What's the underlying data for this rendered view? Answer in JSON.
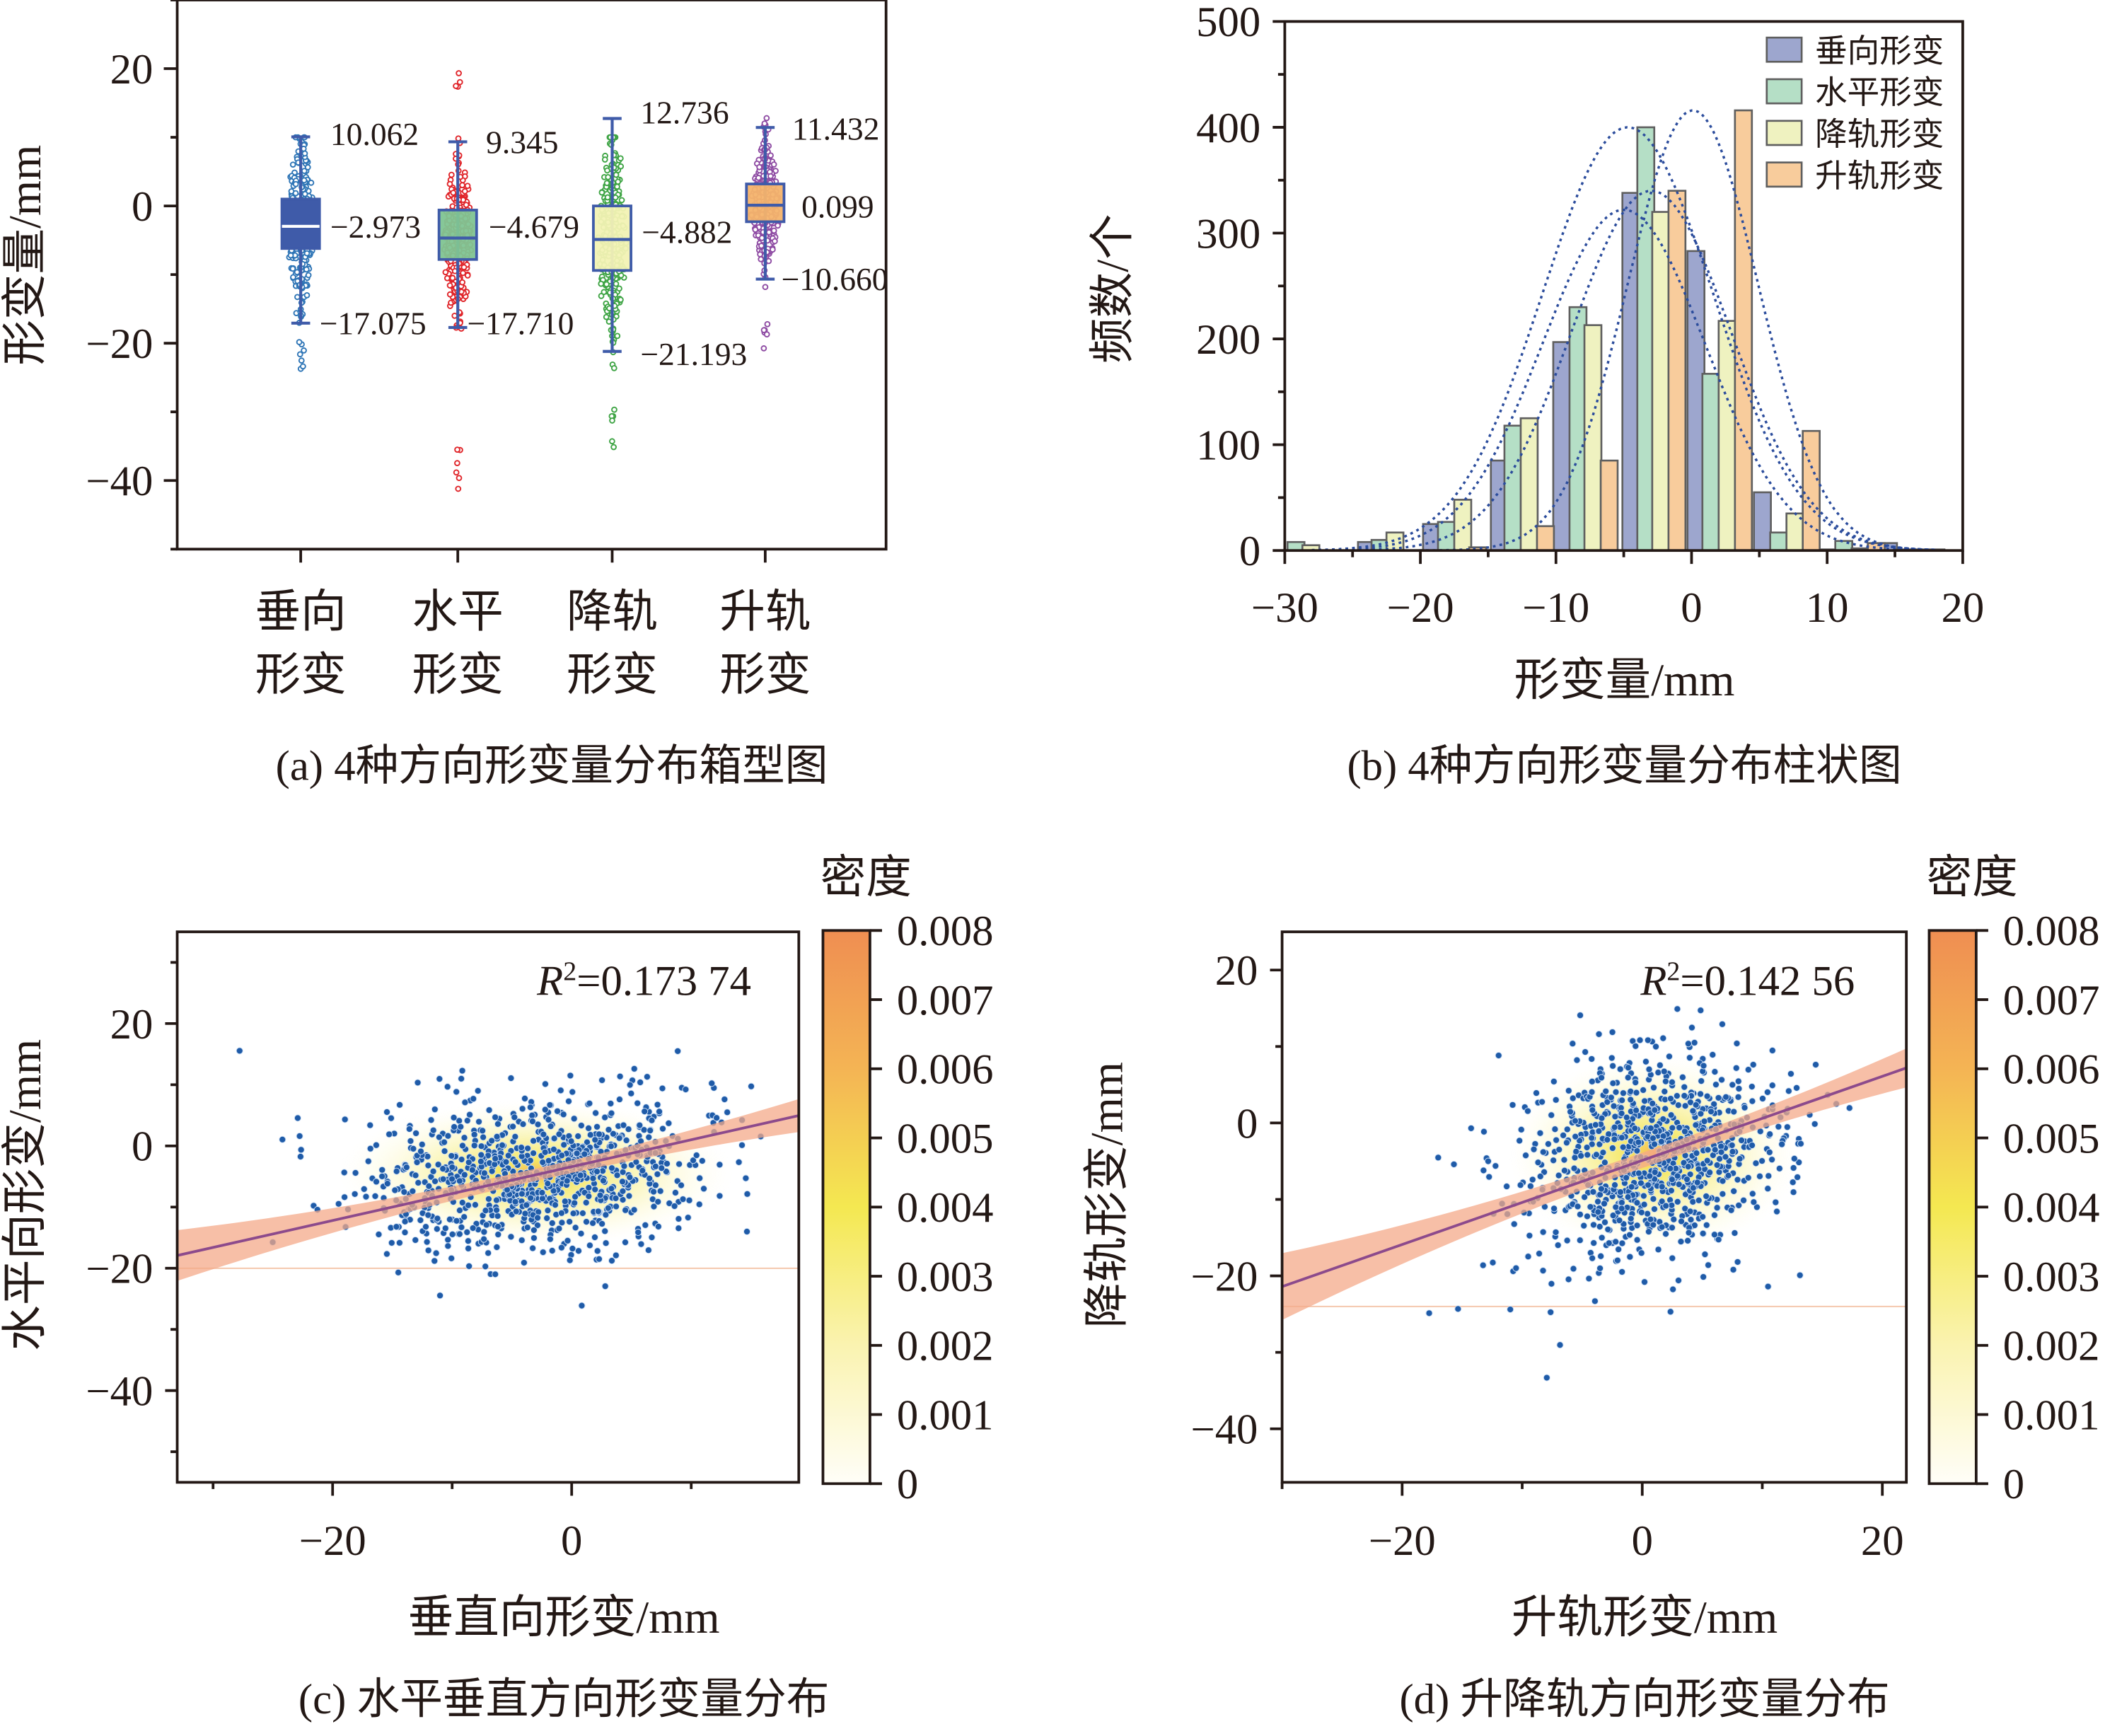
{
  "chart_data": [
    {
      "id": "a",
      "type": "box",
      "caption": "(a) 4种方向形变量分布箱型图",
      "ylabel": "形变量/mm",
      "ylim": [
        -50,
        30
      ],
      "yticks": [
        20,
        0,
        -20,
        -40
      ],
      "ytick_labels": [
        "20",
        "0",
        "−20",
        "−40"
      ],
      "categories": [
        {
          "line1": "垂向",
          "line2": "形变"
        },
        {
          "line1": "水平",
          "line2": "形变"
        },
        {
          "line1": "降轨",
          "line2": "形变"
        },
        {
          "line1": "升轨",
          "line2": "形变"
        }
      ],
      "series": [
        {
          "name": "垂向形变",
          "upper_whisker": 10.062,
          "upper_label": "10.062",
          "median": -2.973,
          "median_label": "−2.973",
          "lower_whisker": -17.075,
          "lower_label": "−17.075",
          "q1": -6.2,
          "q3": 1.0,
          "box_color": "#3f5ba9",
          "point_color": "#2e75b6",
          "min": -24,
          "max": 10
        },
        {
          "name": "水平形变",
          "upper_whisker": 9.345,
          "upper_label": "9.345",
          "median": -4.679,
          "median_label": "−4.679",
          "lower_whisker": -17.71,
          "lower_label": "−17.710",
          "q1": -7.8,
          "q3": -0.6,
          "box_color": "#7fc492",
          "point_color": "#e0252a",
          "min": -43,
          "max": 19.5
        },
        {
          "name": "降轨形变",
          "upper_whisker": 12.736,
          "upper_label": "12.736",
          "median": -4.882,
          "median_label": "−4.882",
          "lower_whisker": -21.193,
          "lower_label": "−21.193",
          "q1": -9.4,
          "q3": 0.0,
          "box_color": "#f2f2b4",
          "point_color": "#3ea444",
          "min": -35.5,
          "max": 10
        },
        {
          "name": "升轨形变",
          "upper_whisker": 11.432,
          "upper_label": "11.432",
          "median": 0.099,
          "median_label": "0.099",
          "lower_whisker": -10.66,
          "lower_label": "−10.660",
          "q1": -2.3,
          "q3": 3.2,
          "box_color": "#f4b36b",
          "point_color": "#8e4ba3",
          "min": -21,
          "max": 13
        }
      ]
    },
    {
      "id": "b",
      "type": "bar",
      "caption": "(b) 4种方向形变量分布柱状图",
      "xlabel": "形变量/mm",
      "ylabel": "频数/个",
      "xlim": [
        -30,
        20
      ],
      "ylim": [
        0,
        500
      ],
      "xticks": [
        -30,
        -20,
        -10,
        0,
        10,
        20
      ],
      "xtick_labels": [
        "−30",
        "−20",
        "−10",
        "0",
        "10",
        "20"
      ],
      "yticks": [
        0,
        100,
        200,
        300,
        400,
        500
      ],
      "ytick_labels": [
        "0",
        "100",
        "200",
        "300",
        "400",
        "500"
      ],
      "legend_position": "top-right",
      "bin_starts": [
        -30,
        -25,
        -20,
        -15,
        -10,
        -5,
        0,
        5,
        10,
        15
      ],
      "bar_width": 1.25,
      "series": [
        {
          "name": "垂向形变",
          "color": "#9da6ce",
          "offsets": [
            null,
            -24.6,
            -19.8,
            -14.8,
            -10.2,
            -5.1,
            -0.3,
            4.6,
            9.5,
            13.9
          ],
          "values": [
            0,
            8,
            25,
            85,
            197,
            338,
            283,
            55,
            1,
            7
          ]
        },
        {
          "name": "水平形变",
          "color": "#b5dfc6",
          "offsets": [
            -29.8,
            -23.6,
            -18.7,
            -13.8,
            -9.0,
            -4.0,
            0.8,
            5.8,
            10.6,
            15.1
          ],
          "values": [
            8,
            10,
            27,
            118,
            230,
            400,
            167,
            17,
            9,
            1
          ]
        },
        {
          "name": "降轨形变",
          "color": "#eff2c0",
          "offsets": [
            -28.7,
            -22.5,
            -17.5,
            -12.6,
            -7.9,
            -2.9,
            2.0,
            7.0,
            11.8,
            16.2
          ],
          "values": [
            5,
            17,
            48,
            125,
            213,
            320,
            217,
            35,
            2,
            1
          ]
        },
        {
          "name": "升轨形变",
          "color": "#f8cc9c",
          "offsets": [
            null,
            null,
            -16.4,
            -11.4,
            -6.7,
            -1.7,
            3.2,
            8.2,
            13.0,
            17.4
          ],
          "values": [
            0,
            0,
            3,
            23,
            85,
            340,
            416,
            113,
            7,
            1
          ]
        }
      ],
      "fit_curves": [
        {
          "name": "垂向形变",
          "mean": -2.97,
          "std": 5.9,
          "peak": 340
        },
        {
          "name": "水平形变",
          "mean": -4.7,
          "std": 6.3,
          "peak": 400
        },
        {
          "name": "降轨形变",
          "mean": -5.0,
          "std": 6.0,
          "peak": 322
        },
        {
          "name": "升轨形变",
          "mean": 0.1,
          "std": 4.8,
          "peak": 416
        }
      ],
      "fit_color": "#2b4c9c"
    },
    {
      "id": "c",
      "type": "scatter",
      "caption": "(c) 水平垂直方向形变量分布",
      "xlabel": "垂直向形变/mm",
      "ylabel": "水平向形变/mm",
      "xlim": [
        -33,
        19
      ],
      "ylim": [
        -55,
        35
      ],
      "xticks": [
        -20,
        0
      ],
      "xtick_labels": [
        "−20",
        "0"
      ],
      "yticks": [
        20,
        0,
        -20,
        -40
      ],
      "ytick_labels": [
        "20",
        "0",
        "−20",
        "−40"
      ],
      "r2_label": "=0.173 74",
      "r2_symbol": "R",
      "fit": {
        "slope": 0.44,
        "intercept": -3.4
      },
      "point_color": "#1f5ba8",
      "center": [
        -3,
        -4.5
      ],
      "spread": [
        7.5,
        6
      ],
      "n_points": 950,
      "cutoff_line_y": -20,
      "colorbar": {
        "title": "密度",
        "min": 0,
        "max": 0.008,
        "tick_labels": [
          "0.008",
          "0.007",
          "0.006",
          "0.005",
          "0.004",
          "0.003",
          "0.002",
          "0.001",
          "0"
        ]
      }
    },
    {
      "id": "d",
      "type": "scatter",
      "caption": "(d) 升降轨方向形变量分布",
      "xlabel": "升轨形变/mm",
      "ylabel": "降轨形变/mm",
      "xlim": [
        -30,
        22
      ],
      "ylim": [
        -47,
        25
      ],
      "xticks": [
        -20,
        0,
        20
      ],
      "xtick_labels": [
        "−20",
        "0",
        "20"
      ],
      "yticks": [
        20,
        0,
        -20,
        -40
      ],
      "ytick_labels": [
        "20",
        "0",
        "−20",
        "−40"
      ],
      "r2_label": "=0.142 56",
      "r2_symbol": "R",
      "fit": {
        "slope": 0.55,
        "intercept": -4.9
      },
      "point_color": "#1f5ba8",
      "center": [
        1,
        -4
      ],
      "spread": [
        5.5,
        6.5
      ],
      "n_points": 950,
      "cutoff_line_y": -24,
      "colorbar": {
        "title": "密度",
        "min": 0,
        "max": 0.008,
        "tick_labels": [
          "0.008",
          "0.007",
          "0.006",
          "0.005",
          "0.004",
          "0.003",
          "0.002",
          "0.001",
          "0"
        ]
      }
    }
  ]
}
